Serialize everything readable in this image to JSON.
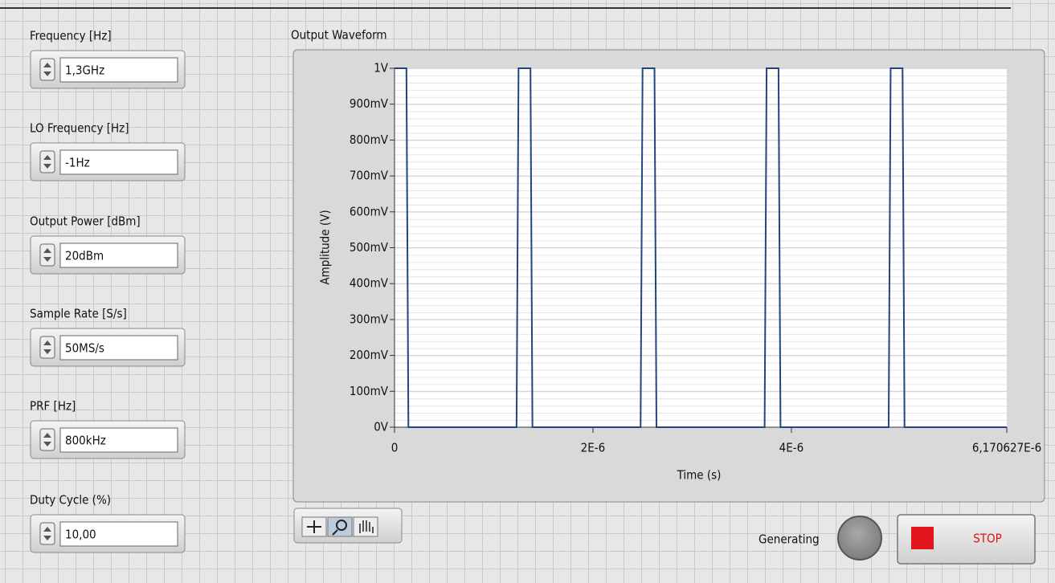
{
  "controls": [
    {
      "label": "Frequency [Hz]",
      "value": "1,3GHz"
    },
    {
      "label": "LO Frequency [Hz]",
      "value": "-1Hz"
    },
    {
      "label": "Output Power [dBm]",
      "value": "20dBm"
    },
    {
      "label": "Sample Rate [S/s]",
      "value": "50MS/s"
    },
    {
      "label": "PRF [Hz]",
      "value": "800kHz"
    },
    {
      "label": "Duty Cycle (%)",
      "value": "10,00"
    }
  ],
  "chart_data": {
    "type": "line",
    "title": "Output Waveform",
    "x_label": "Time (s)",
    "y_label": "Amplitude (V)",
    "x": [
      0,
      1.2e-07,
      1.4e-07,
      1.23e-06,
      1.25e-06,
      1.37e-06,
      1.39e-06,
      2.48e-06,
      2.5e-06,
      2.62e-06,
      2.64e-06,
      3.73e-06,
      3.75e-06,
      3.87e-06,
      3.89e-06,
      4.98e-06,
      5e-06,
      5.12e-06,
      5.14e-06,
      6.170627e-06
    ],
    "series": [
      {
        "color": "#23467f",
        "values": [
          1,
          1,
          0,
          0,
          1,
          1,
          0,
          0,
          1,
          1,
          0,
          0,
          1,
          1,
          0,
          0,
          1,
          1,
          0,
          0
        ]
      }
    ],
    "xlim": [
      0,
      6.170627e-06
    ],
    "ylim": [
      0,
      1
    ],
    "xticks": [
      0,
      {
        "value": 2e-06,
        "label": "2E-6"
      },
      {
        "value": 4e-06,
        "label": "4E-6"
      },
      {
        "value": 6.170627e-06,
        "label": "6,170627E-6"
      }
    ],
    "yticks": [
      {
        "value": 0,
        "label": "0V"
      },
      {
        "value": 0.1,
        "label": "100mV"
      },
      {
        "value": 0.2,
        "label": "200mV"
      },
      {
        "value": 0.3,
        "label": "300mV"
      },
      {
        "value": 0.4,
        "label": "400mV"
      },
      {
        "value": 0.5,
        "label": "500mV"
      },
      {
        "value": 0.6,
        "label": "600mV"
      },
      {
        "value": 0.7,
        "label": "700mV"
      },
      {
        "value": 0.8,
        "label": "800mV"
      },
      {
        "value": 0.9,
        "label": "900mV"
      },
      {
        "value": 1,
        "label": "1V"
      }
    ],
    "grid": true
  },
  "indicator": {
    "label": "Generating"
  },
  "stop_button": {
    "label": "STOP"
  }
}
